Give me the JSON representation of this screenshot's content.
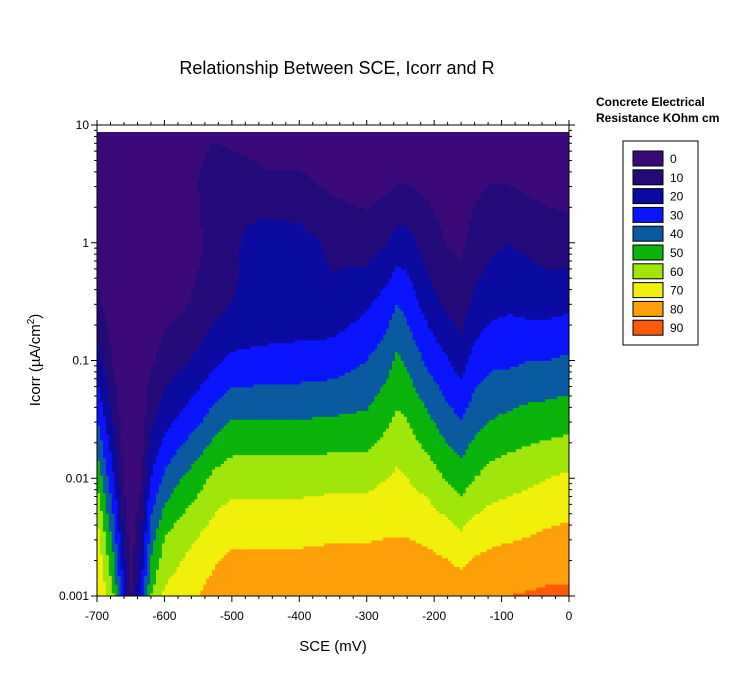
{
  "chart_data": {
    "type": "heatmap",
    "title": "Relationship Between SCE, Icorr and R",
    "xlabel": "SCE (mV)",
    "ylabel_parts": {
      "pre": "Icorr (",
      "mu": "µ",
      "post": "A/cm",
      "sup": "2",
      "close": ")"
    },
    "y_scale": "log",
    "xlim": [
      -700,
      0
    ],
    "ylim": [
      0.001,
      10
    ],
    "x_ticks": [
      -700,
      -600,
      -500,
      -400,
      -300,
      -200,
      -100,
      0
    ],
    "x_tick_labels": [
      "-700",
      "-600",
      "-500",
      "-400",
      "-300",
      "-200",
      "-100",
      "0"
    ],
    "y_ticks": [
      0.001,
      0.01,
      0.1,
      1,
      10
    ],
    "y_tick_labels": [
      "0.001",
      "0.01",
      "0.1",
      "1",
      "10"
    ],
    "legend_title": [
      "Concrete Electrical",
      "Resistance KOhm cm"
    ],
    "legend_placement": "right",
    "levels": [
      {
        "value": 0,
        "label": "0",
        "color": "#3c0a78"
      },
      {
        "value": 10,
        "label": "10",
        "color": "#230a78"
      },
      {
        "value": 20,
        "label": "20",
        "color": "#0a0aa0"
      },
      {
        "value": 30,
        "label": "30",
        "color": "#0a14ff"
      },
      {
        "value": 40,
        "label": "40",
        "color": "#0a5aa0"
      },
      {
        "value": 50,
        "label": "50",
        "color": "#0ab40a"
      },
      {
        "value": 60,
        "label": "60",
        "color": "#a0e60a"
      },
      {
        "value": 70,
        "label": "70",
        "color": "#f0f00a"
      },
      {
        "value": 80,
        "label": "80",
        "color": "#ffa00a"
      },
      {
        "value": 90,
        "label": "90",
        "color": "#ff5a0a"
      }
    ],
    "x": [
      -700,
      -675,
      -660,
      -650,
      -635,
      -620,
      -600,
      -575,
      -550,
      -525,
      -500,
      -450,
      -400,
      -350,
      -300,
      -270,
      -255,
      -240,
      -210,
      -185,
      -160,
      -140,
      -115,
      -90,
      -60,
      -30,
      0
    ],
    "y_log10": [
      -3.0,
      -2.5,
      -2.0,
      -1.5,
      -1.0,
      -0.5,
      0.0,
      0.5,
      0.93
    ],
    "z": [
      [
        82,
        75,
        58,
        40,
        25,
        12,
        5,
        3,
        2
      ],
      [
        60,
        45,
        30,
        18,
        8,
        3,
        2,
        1,
        1
      ],
      [
        30,
        18,
        8,
        4,
        2,
        1,
        1,
        1,
        1
      ],
      [
        10,
        5,
        3,
        2,
        1,
        1,
        1,
        1,
        1
      ],
      [
        30,
        18,
        8,
        4,
        2,
        1,
        1,
        1,
        1
      ],
      [
        60,
        45,
        30,
        18,
        8,
        3,
        2,
        1,
        1
      ],
      [
        72,
        60,
        42,
        26,
        14,
        6,
        5,
        4,
        3
      ],
      [
        76,
        66,
        50,
        32,
        18,
        8,
        6,
        6,
        4
      ],
      [
        80,
        70,
        56,
        38,
        22,
        12,
        8,
        10,
        6
      ],
      [
        85,
        75,
        63,
        45,
        28,
        16,
        14,
        20,
        8
      ],
      [
        88,
        78,
        66,
        50,
        32,
        20,
        18,
        18,
        6
      ],
      [
        89,
        78,
        66,
        50,
        33,
        22,
        26,
        12,
        5
      ],
      [
        89,
        78,
        66,
        50,
        34,
        22,
        24,
        12,
        5
      ],
      [
        89,
        79,
        67,
        51,
        35,
        22,
        18,
        8,
        4
      ],
      [
        89,
        79,
        67,
        52,
        40,
        28,
        15,
        6,
        3
      ],
      [
        89,
        80,
        70,
        58,
        46,
        34,
        20,
        8,
        3
      ],
      [
        90,
        80,
        72,
        62,
        52,
        40,
        24,
        10,
        3
      ],
      [
        90,
        80,
        70,
        60,
        48,
        36,
        24,
        10,
        3
      ],
      [
        89,
        78,
        66,
        52,
        38,
        25,
        15,
        8,
        3
      ],
      [
        88,
        76,
        60,
        45,
        32,
        18,
        10,
        6,
        3
      ],
      [
        87,
        72,
        55,
        40,
        25,
        14,
        8,
        5,
        3
      ],
      [
        88,
        76,
        60,
        46,
        34,
        22,
        14,
        8,
        3
      ],
      [
        89,
        78,
        64,
        50,
        38,
        26,
        18,
        10,
        3
      ],
      [
        90,
        79,
        66,
        52,
        38,
        28,
        20,
        10,
        3
      ],
      [
        91,
        80,
        68,
        54,
        40,
        26,
        18,
        8,
        3
      ],
      [
        92,
        82,
        70,
        55,
        40,
        26,
        15,
        7,
        3
      ],
      [
        92,
        83,
        72,
        56,
        42,
        27,
        14,
        6,
        3
      ]
    ]
  }
}
